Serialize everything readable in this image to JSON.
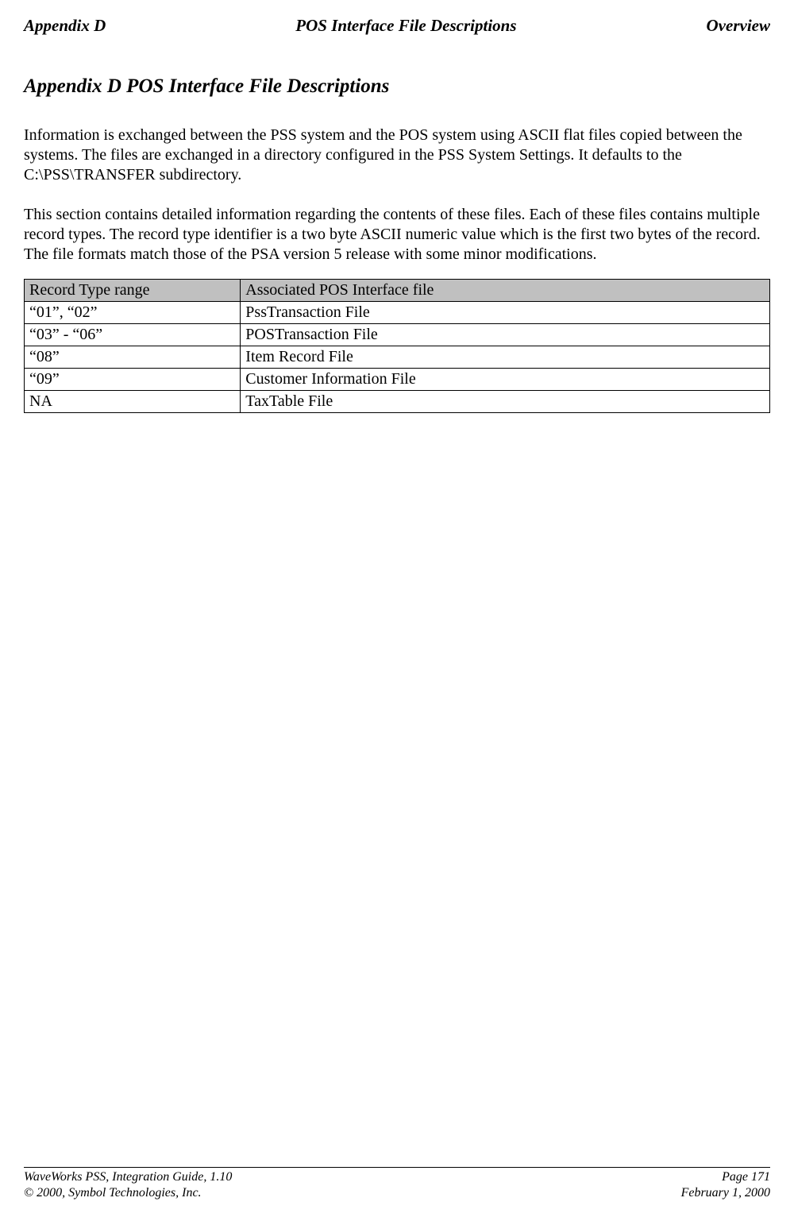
{
  "header": {
    "left": "Appendix D",
    "center": "POS Interface File Descriptions",
    "right": "Overview"
  },
  "title": "Appendix D   POS Interface File Descriptions",
  "para1": "Information is exchanged between the PSS system and the POS system using ASCII flat files copied between the systems. The files are exchanged in a directory configured in the PSS System Settings.  It defaults to the C:\\PSS\\TRANSFER subdirectory.",
  "para2": "This section contains detailed information regarding the contents of these files. Each of these files contains multiple record types.  The record type identifier is a two byte ASCII numeric value which is the first two bytes of the record.",
  "para3": "The file formats match those of the PSA version 5 release with some minor modifications.",
  "table": {
    "headers": [
      "Record Type range",
      "Associated POS Interface file"
    ],
    "rows": [
      [
        "“01”, “02”",
        "PssTransaction File"
      ],
      [
        "“03” - “06”",
        "POSTransaction File"
      ],
      [
        "“08”",
        "Item Record File"
      ],
      [
        "“09”",
        "Customer Information File"
      ],
      [
        "NA",
        "TaxTable File"
      ]
    ]
  },
  "footer": {
    "left_line1": "WaveWorks PSS, Integration Guide, 1.10",
    "left_line2": "© 2000, Symbol Technologies, Inc.",
    "right_line1": "Page 171",
    "right_line2": "February 1, 2000"
  }
}
